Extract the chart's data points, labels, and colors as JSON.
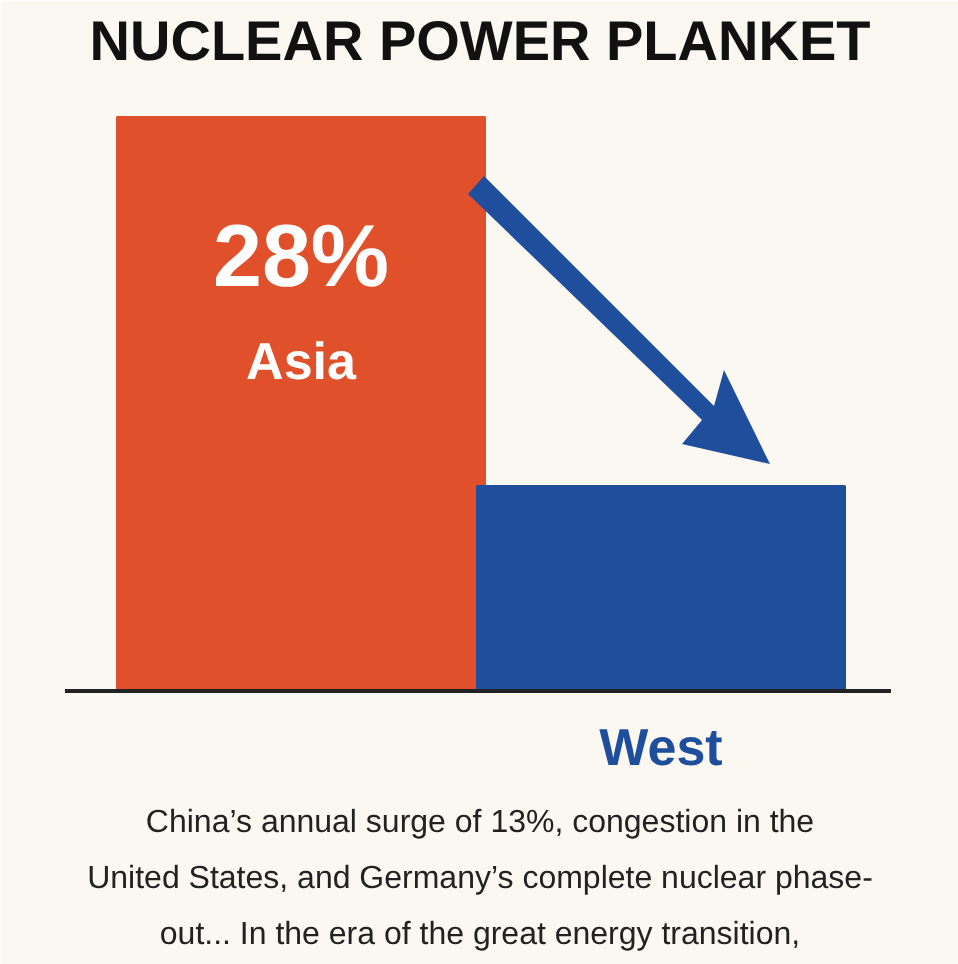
{
  "chart_data": {
    "type": "bar",
    "title": "NUCLEAR POWER PLANKET",
    "categories": [
      "Asia",
      "West"
    ],
    "values": [
      28,
      10
    ],
    "tick_labels": false,
    "colors": [
      "#e0502a",
      "#1f4e9c"
    ],
    "value_labels": [
      "28%",
      null
    ],
    "annotations": [
      "China’s annual surge of 13%, congestion in the United States, and Germany’s complete nuclear phase-out... In the era of the great energy transition,"
    ]
  }
}
